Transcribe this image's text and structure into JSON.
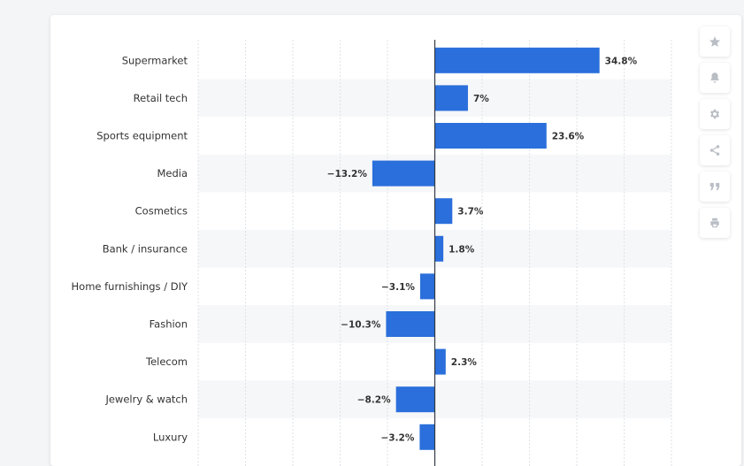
{
  "chart_data": {
    "type": "bar",
    "orientation": "horizontal",
    "categories": [
      "Supermarket",
      "Retail tech",
      "Sports equipment",
      "Media",
      "Cosmetics",
      "Bank / insurance",
      "Home furnishings / DIY",
      "Fashion",
      "Telecom",
      "Jewelry & watch",
      "Luxury"
    ],
    "values": [
      34.8,
      7,
      23.6,
      -13.2,
      3.7,
      1.8,
      -3.1,
      -10.3,
      2.3,
      -8.2,
      -3.2
    ],
    "value_labels": [
      "34.8%",
      "7%",
      "23.6%",
      "−13.2%",
      "3.7%",
      "1.8%",
      "−3.1%",
      "−10.3%",
      "2.3%",
      "−8.2%",
      "−3.2%"
    ],
    "xlim": [
      -50,
      50
    ],
    "grid": true,
    "bar_color": "#2a6fdb"
  },
  "toolbar": {
    "buttons": [
      {
        "icon": "star-icon"
      },
      {
        "icon": "bell-icon"
      },
      {
        "icon": "gear-icon"
      },
      {
        "icon": "share-icon"
      },
      {
        "icon": "quote-icon"
      },
      {
        "icon": "print-icon"
      }
    ]
  }
}
